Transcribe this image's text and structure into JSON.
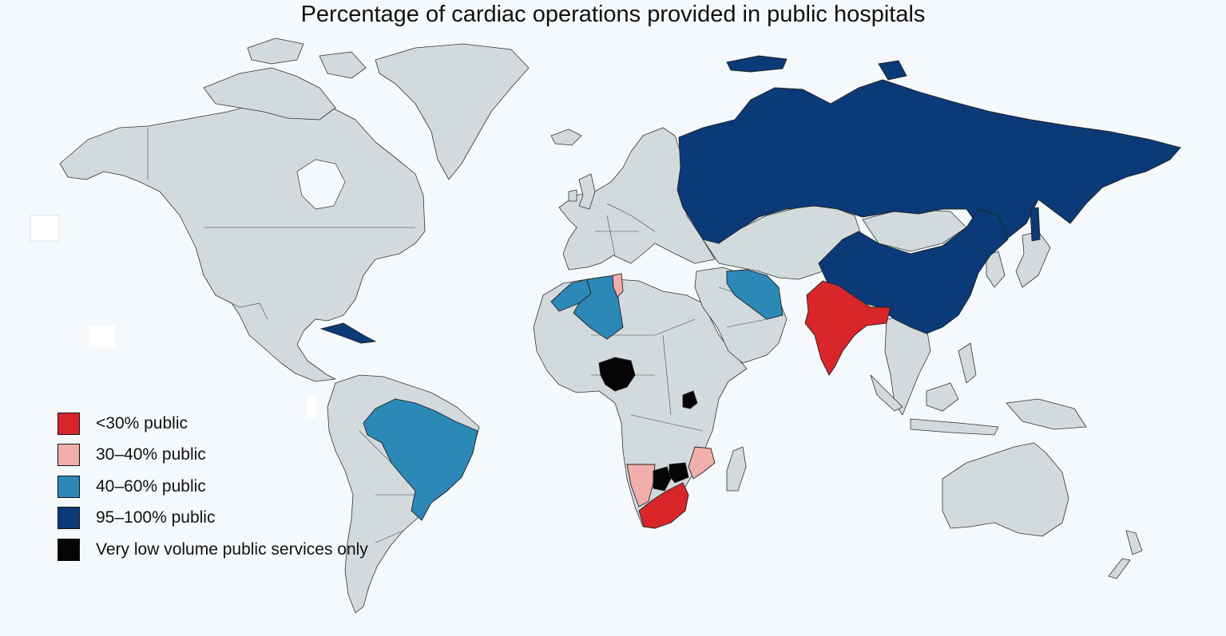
{
  "title": "Percentage of cardiac operations provided in public hospitals",
  "colors": {
    "land": "#d3dadd",
    "background": "#f5f9fc",
    "lt30": "#d8262a",
    "p30_40": "#f2aeab",
    "p40_60": "#2c88b7",
    "p95_100": "#0a3a78",
    "very_low": "#050505"
  },
  "legend": [
    {
      "label": "<30% public",
      "color": "#d8262a"
    },
    {
      "label": "30–40% public",
      "color": "#f2aeab"
    },
    {
      "label": "40–60% public",
      "color": "#2c88b7"
    },
    {
      "label": "95–100% public",
      "color": "#0a3a78"
    },
    {
      "label": "Very low volume public services only",
      "color": "#050505"
    }
  ],
  "regions": {
    "lt30": [
      "India",
      "South Africa"
    ],
    "p30_40": [
      "Tunisia",
      "Namibia",
      "Mozambique"
    ],
    "p40_60": [
      "Morocco",
      "Algeria",
      "Iran",
      "Brazil"
    ],
    "p95_100": [
      "Russia",
      "China",
      "Cuba"
    ],
    "very_low": [
      "Nigeria",
      "Uganda",
      "Botswana",
      "Zimbabwe"
    ]
  }
}
